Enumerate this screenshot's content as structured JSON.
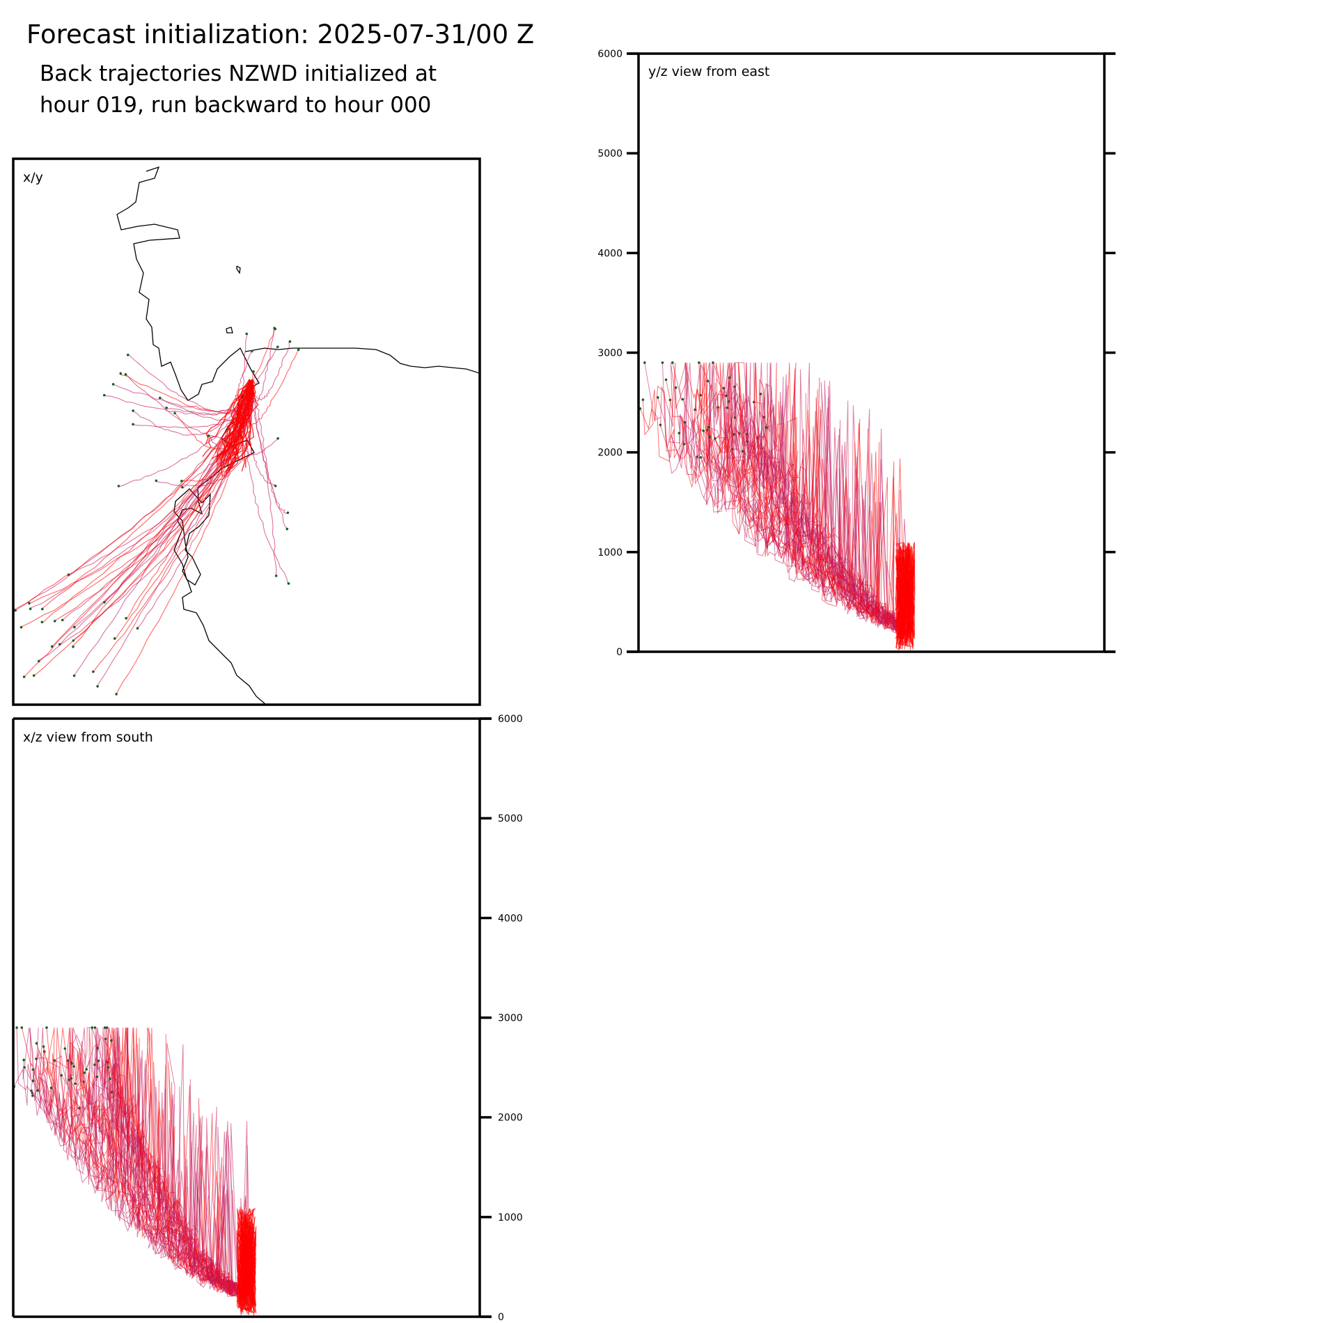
{
  "figure": {
    "title": "Forecast initialization: 2025-07-31/00 Z",
    "subtitle_line1": "Back trajectories NZWD initialized at",
    "subtitle_line2": "hour 019, run backward to hour 000"
  },
  "colors": {
    "trajectory_primary": "#ff0000",
    "trajectory_secondary": "#c2185b",
    "marker": "#1b5e20",
    "coastline": "#000000",
    "frame": "#000000"
  },
  "chart_data": [
    {
      "type": "line",
      "panel": "xy",
      "label": "x/y",
      "map": true,
      "coastline": true,
      "description_of_marks": "many back-trajectory lines converging near the start point",
      "grid": false
    },
    {
      "type": "line",
      "panel": "yz",
      "label": "y/z view from east",
      "ylim": [
        0,
        6000
      ],
      "yticks": [
        0,
        1000,
        2000,
        3000,
        4000,
        5000,
        6000
      ],
      "ytick_labels": [
        "0",
        "1000",
        "2000",
        "3000",
        "4000",
        "5000",
        "6000"
      ],
      "ytick_side": "left",
      "grid": false
    },
    {
      "type": "line",
      "panel": "xz",
      "label": "x/z view from south",
      "ylim": [
        0,
        6000
      ],
      "yticks": [
        0,
        1000,
        2000,
        3000,
        4000,
        5000,
        6000
      ],
      "ytick_labels": [
        "0",
        "1000",
        "2000",
        "3000",
        "4000",
        "5000",
        "6000"
      ],
      "ytick_side": "right",
      "grid": false
    }
  ]
}
